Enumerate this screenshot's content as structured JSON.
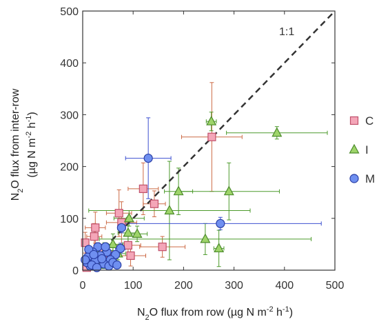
{
  "chart_data": {
    "type": "scatter",
    "xlabel": {
      "prefix": "N",
      "sub": "2",
      "mid": "O flux from row (µg N m",
      "sup": "-2",
      "mid2": " h",
      "sup2": "-1",
      "suffix": ")"
    },
    "ylabel_line1": {
      "prefix": "N",
      "sub": "2",
      "suffix": "O flux from inter-row"
    },
    "ylabel_line2": {
      "prefix": "(µg N m",
      "sup": "-2",
      "mid": " h",
      "sup2": "-1",
      "suffix": ")"
    },
    "xlim": [
      0,
      500
    ],
    "ylim": [
      0,
      500
    ],
    "xticks": [
      0,
      100,
      200,
      300,
      400,
      500
    ],
    "yticks": [
      0,
      100,
      200,
      300,
      400,
      500
    ],
    "xtick_labels": [
      "0",
      "100",
      "200",
      "300",
      "400",
      "500"
    ],
    "ytick_labels": [
      "0",
      "100",
      "200",
      "300",
      "400",
      "500"
    ],
    "grid": false,
    "legend_position": "right",
    "reference_line": {
      "label": "1:1",
      "from": [
        0,
        0
      ],
      "to": [
        500,
        500
      ],
      "style": "dashed",
      "color": "#333333"
    },
    "series": [
      {
        "name": "C",
        "marker": "square",
        "fill": "#f4a6b8",
        "stroke": "#c0506a",
        "err_color": "#cc6a45",
        "points": [
          {
            "x": 256,
            "y": 257,
            "xerr": 60,
            "yerr": 105
          },
          {
            "x": 120,
            "y": 157,
            "xerr": 30,
            "yerr": 50
          },
          {
            "x": 142,
            "y": 128,
            "xerr": 22,
            "yerr": 25
          },
          {
            "x": 72,
            "y": 110,
            "xerr": 25,
            "yerr": 45
          },
          {
            "x": 77,
            "y": 92,
            "xerr": 30,
            "yerr": 40
          },
          {
            "x": 25,
            "y": 82,
            "xerr": 20,
            "yerr": 30
          },
          {
            "x": 23,
            "y": 65,
            "xerr": 15,
            "yerr": 25
          },
          {
            "x": 5,
            "y": 53,
            "xerr": 6,
            "yerr": 20
          },
          {
            "x": 90,
            "y": 48,
            "xerr": 25,
            "yerr": 25
          },
          {
            "x": 158,
            "y": 45,
            "xerr": 45,
            "yerr": 20
          },
          {
            "x": 95,
            "y": 28,
            "xerr": 30,
            "yerr": 20
          },
          {
            "x": 40,
            "y": 35,
            "xerr": 18,
            "yerr": 15
          },
          {
            "x": 20,
            "y": 25,
            "xerr": 12,
            "yerr": 12
          },
          {
            "x": 12,
            "y": 12,
            "xerr": 8,
            "yerr": 8
          },
          {
            "x": 32,
            "y": 15,
            "xerr": 10,
            "yerr": 8
          },
          {
            "x": 55,
            "y": 22,
            "xerr": 12,
            "yerr": 10
          },
          {
            "x": 8,
            "y": 5,
            "xerr": 5,
            "yerr": 5
          }
        ]
      },
      {
        "name": "I",
        "marker": "triangle",
        "fill": "#9ed46a",
        "stroke": "#4b8a2a",
        "err_color": "#4b9a2a",
        "points": [
          {
            "x": 385,
            "y": 265,
            "xerr": 100,
            "yerr": 12
          },
          {
            "x": 255,
            "y": 287,
            "xerr": 10,
            "yerr": 18
          },
          {
            "x": 290,
            "y": 152,
            "xerr": 100,
            "yerr": 55
          },
          {
            "x": 190,
            "y": 152,
            "xerr": 28,
            "yerr": 45
          },
          {
            "x": 172,
            "y": 115,
            "xerr": 160,
            "yerr": 95
          },
          {
            "x": 92,
            "y": 100,
            "xerr": 30,
            "yerr": 15
          },
          {
            "x": 90,
            "y": 72,
            "xerr": 20,
            "yerr": 30
          },
          {
            "x": 108,
            "y": 70,
            "xerr": 20,
            "yerr": 15
          },
          {
            "x": 243,
            "y": 60,
            "xerr": 210,
            "yerr": 30
          },
          {
            "x": 270,
            "y": 42,
            "xerr": 10,
            "yerr": 35
          },
          {
            "x": 60,
            "y": 50,
            "xerr": 20,
            "yerr": 20
          },
          {
            "x": 45,
            "y": 38,
            "xerr": 15,
            "yerr": 15
          },
          {
            "x": 30,
            "y": 30,
            "xerr": 12,
            "yerr": 12
          },
          {
            "x": 55,
            "y": 18,
            "xerr": 10,
            "yerr": 10
          },
          {
            "x": 15,
            "y": 22,
            "xerr": 10,
            "yerr": 10
          },
          {
            "x": 35,
            "y": 10,
            "xerr": 10,
            "yerr": 6
          },
          {
            "x": 70,
            "y": 32,
            "xerr": 15,
            "yerr": 12
          }
        ]
      },
      {
        "name": "M",
        "marker": "circle",
        "fill": "#6f8ff0",
        "stroke": "#2a3fa5",
        "err_color": "#3b4fd0",
        "points": [
          {
            "x": 130,
            "y": 216,
            "xerr": 45,
            "yerr": 78
          },
          {
            "x": 273,
            "y": 90,
            "xerr": 200,
            "yerr": 12
          },
          {
            "x": 77,
            "y": 82,
            "xerr": 8,
            "yerr": 10
          },
          {
            "x": 75,
            "y": 42,
            "xerr": 10,
            "yerr": 10
          },
          {
            "x": 65,
            "y": 30,
            "xerr": 10,
            "yerr": 8
          },
          {
            "x": 55,
            "y": 20,
            "xerr": 8,
            "yerr": 6
          },
          {
            "x": 48,
            "y": 35,
            "xerr": 8,
            "yerr": 8
          },
          {
            "x": 42,
            "y": 12,
            "xerr": 8,
            "yerr": 6
          },
          {
            "x": 35,
            "y": 28,
            "xerr": 8,
            "yerr": 6
          },
          {
            "x": 30,
            "y": 45,
            "xerr": 8,
            "yerr": 8
          },
          {
            "x": 25,
            "y": 18,
            "xerr": 6,
            "yerr": 6
          },
          {
            "x": 20,
            "y": 35,
            "xerr": 6,
            "yerr": 6
          },
          {
            "x": 15,
            "y": 8,
            "xerr": 5,
            "yerr": 5
          },
          {
            "x": 12,
            "y": 40,
            "xerr": 5,
            "yerr": 6
          },
          {
            "x": 10,
            "y": 25,
            "xerr": 5,
            "yerr": 5
          },
          {
            "x": 8,
            "y": 15,
            "xerr": 4,
            "yerr": 4
          },
          {
            "x": 18,
            "y": 10,
            "xerr": 5,
            "yerr": 4
          },
          {
            "x": 28,
            "y": 5,
            "xerr": 5,
            "yerr": 4
          },
          {
            "x": 38,
            "y": 22,
            "xerr": 6,
            "yerr": 5
          },
          {
            "x": 52,
            "y": 8,
            "xerr": 6,
            "yerr": 4
          },
          {
            "x": 60,
            "y": 15,
            "xerr": 6,
            "yerr": 5
          },
          {
            "x": 68,
            "y": 10,
            "xerr": 6,
            "yerr": 5
          },
          {
            "x": 5,
            "y": 20,
            "xerr": 4,
            "yerr": 4
          },
          {
            "x": 22,
            "y": 30,
            "xerr": 5,
            "yerr": 5
          },
          {
            "x": 45,
            "y": 45,
            "xerr": 6,
            "yerr": 6
          }
        ]
      }
    ]
  }
}
